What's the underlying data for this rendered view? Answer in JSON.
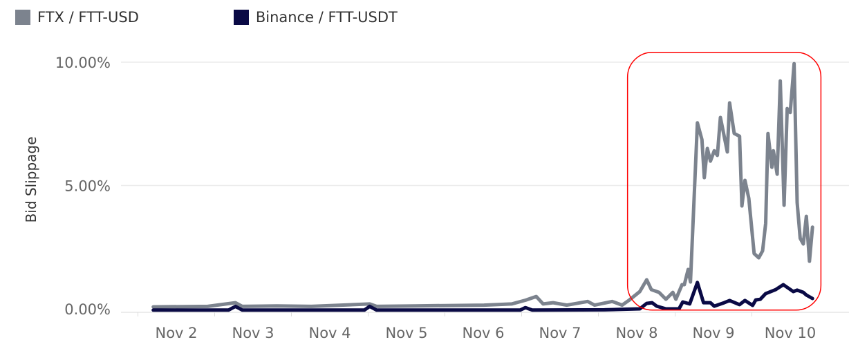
{
  "chart_data": {
    "type": "line",
    "title": "",
    "xlabel": "",
    "ylabel": "Bid Slippage",
    "ylim": [
      -0.14,
      10
    ],
    "xlim": [
      1.28,
      10.77
    ],
    "x_ticks": [
      {
        "value": 2,
        "label": "Nov 2"
      },
      {
        "value": 3,
        "label": "Nov 3"
      },
      {
        "value": 4,
        "label": "Nov 4"
      },
      {
        "value": 5,
        "label": "Nov 5"
      },
      {
        "value": 6,
        "label": "Nov 6"
      },
      {
        "value": 7,
        "label": "Nov 7"
      },
      {
        "value": 8,
        "label": "Nov 8"
      },
      {
        "value": 9,
        "label": "Nov 9"
      },
      {
        "value": 10,
        "label": "Nov 10"
      }
    ],
    "y_ticks": [
      {
        "value": 0,
        "label": "0.00%"
      },
      {
        "value": 5,
        "label": "5.00%"
      },
      {
        "value": 10,
        "label": "10.00%"
      }
    ],
    "grid": true,
    "legend_position": "top-left",
    "highlight_region": {
      "x": [
        7.88,
        10.4
      ],
      "y": [
        -0.05,
        10.4
      ],
      "color": "#ff0000"
    },
    "series": [
      {
        "name": "FTX / FTT-USD",
        "color": "#7c838e",
        "points": [
          [
            1.7,
            0.08
          ],
          [
            2.41,
            0.1
          ],
          [
            2.77,
            0.25
          ],
          [
            2.86,
            0.1
          ],
          [
            3.31,
            0.12
          ],
          [
            3.76,
            0.1
          ],
          [
            4.52,
            0.2
          ],
          [
            4.61,
            0.1
          ],
          [
            5.11,
            0.12
          ],
          [
            6.01,
            0.15
          ],
          [
            6.37,
            0.2
          ],
          [
            6.55,
            0.35
          ],
          [
            6.69,
            0.5
          ],
          [
            6.78,
            0.2
          ],
          [
            6.91,
            0.25
          ],
          [
            7.09,
            0.15
          ],
          [
            7.36,
            0.3
          ],
          [
            7.45,
            0.15
          ],
          [
            7.68,
            0.3
          ],
          [
            7.81,
            0.15
          ],
          [
            7.9,
            0.35
          ],
          [
            8.04,
            0.7
          ],
          [
            8.13,
            1.18
          ],
          [
            8.19,
            0.78
          ],
          [
            8.29,
            0.67
          ],
          [
            8.38,
            0.39
          ],
          [
            8.47,
            0.67
          ],
          [
            8.51,
            0.39
          ],
          [
            8.59,
            0.98
          ],
          [
            8.62,
            0.98
          ],
          [
            8.67,
            1.6
          ],
          [
            8.7,
            1.09
          ],
          [
            8.79,
            7.54
          ],
          [
            8.85,
            6.86
          ],
          [
            8.88,
            5.32
          ],
          [
            8.92,
            6.5
          ],
          [
            8.96,
            5.99
          ],
          [
            9.01,
            6.41
          ],
          [
            9.05,
            6.22
          ],
          [
            9.09,
            7.76
          ],
          [
            9.18,
            6.36
          ],
          [
            9.21,
            8.35
          ],
          [
            9.27,
            7.11
          ],
          [
            9.34,
            7.0
          ],
          [
            9.37,
            4.17
          ],
          [
            9.41,
            5.21
          ],
          [
            9.46,
            4.48
          ],
          [
            9.53,
            2.24
          ],
          [
            9.59,
            2.07
          ],
          [
            9.64,
            2.35
          ],
          [
            9.68,
            3.47
          ],
          [
            9.71,
            7.11
          ],
          [
            9.76,
            5.74
          ],
          [
            9.78,
            6.41
          ],
          [
            9.83,
            5.46
          ],
          [
            9.87,
            9.24
          ],
          [
            9.92,
            4.2
          ],
          [
            9.96,
            8.12
          ],
          [
            10.0,
            7.96
          ],
          [
            10.05,
            9.94
          ],
          [
            10.09,
            4.31
          ],
          [
            10.13,
            2.86
          ],
          [
            10.17,
            2.63
          ],
          [
            10.21,
            3.75
          ],
          [
            10.25,
            1.93
          ],
          [
            10.29,
            3.31
          ]
        ]
      },
      {
        "name": "Binance / FTT-USDT",
        "color": "#0a0a45",
        "points": [
          [
            1.7,
            -0.05
          ],
          [
            2.68,
            -0.05
          ],
          [
            2.77,
            0.1
          ],
          [
            2.86,
            -0.05
          ],
          [
            4.45,
            -0.05
          ],
          [
            4.52,
            0.1
          ],
          [
            4.61,
            -0.05
          ],
          [
            6.48,
            -0.05
          ],
          [
            6.55,
            0.05
          ],
          [
            6.64,
            -0.05
          ],
          [
            7.58,
            -0.04
          ],
          [
            8.04,
            0.0
          ],
          [
            8.13,
            0.22
          ],
          [
            8.2,
            0.25
          ],
          [
            8.26,
            0.11
          ],
          [
            8.38,
            0.0
          ],
          [
            8.55,
            0.0
          ],
          [
            8.6,
            0.28
          ],
          [
            8.69,
            0.2
          ],
          [
            8.79,
            1.07
          ],
          [
            8.87,
            0.25
          ],
          [
            8.96,
            0.25
          ],
          [
            9.01,
            0.11
          ],
          [
            9.14,
            0.25
          ],
          [
            9.21,
            0.34
          ],
          [
            9.34,
            0.17
          ],
          [
            9.41,
            0.34
          ],
          [
            9.51,
            0.14
          ],
          [
            9.55,
            0.36
          ],
          [
            9.61,
            0.39
          ],
          [
            9.68,
            0.62
          ],
          [
            9.81,
            0.78
          ],
          [
            9.91,
            0.98
          ],
          [
            10.04,
            0.7
          ],
          [
            10.09,
            0.76
          ],
          [
            10.17,
            0.67
          ],
          [
            10.21,
            0.56
          ],
          [
            10.29,
            0.42
          ]
        ]
      }
    ]
  }
}
